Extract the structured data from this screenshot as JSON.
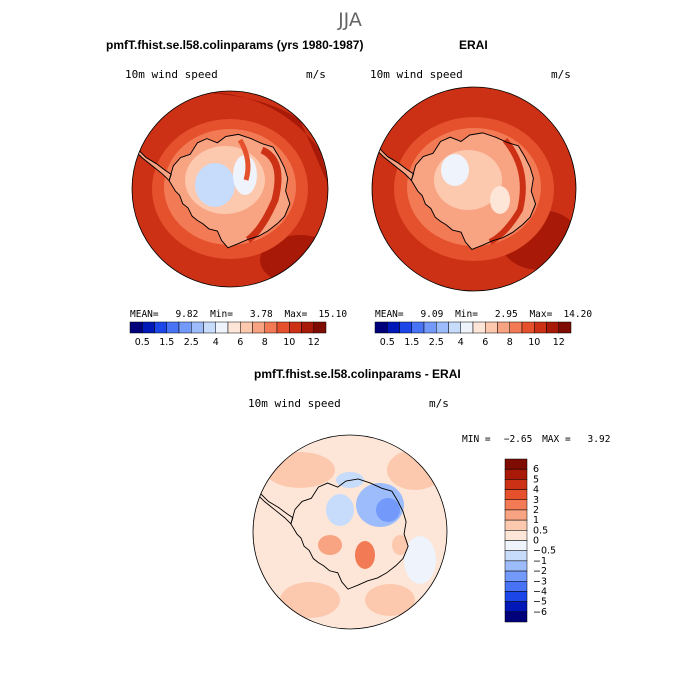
{
  "figure_title": "JJA",
  "panels": [
    {
      "id": "model",
      "title": "pmfT.fhist.se.l58.colinparams (yrs 1980-1987)",
      "variable": "10m wind speed",
      "units": "m/s",
      "stats": {
        "mean_label": "MEAN=",
        "mean": "9.82",
        "min_label": "Min=",
        "min": "3.78",
        "max_label": "Max=",
        "max": "15.10"
      }
    },
    {
      "id": "obs",
      "title": "ERAI",
      "variable": "10m wind speed",
      "units": "m/s",
      "stats": {
        "mean_label": "MEAN=",
        "mean": "9.09",
        "min_label": "Min=",
        "min": "2.95",
        "max_label": "Max=",
        "max": "14.20"
      }
    },
    {
      "id": "diff",
      "title": "pmfT.fhist.se.l58.colinparams - ERAI",
      "variable": "10m wind speed",
      "units": "m/s",
      "stats": {
        "min_label": "MIN =",
        "min": "−2.65",
        "max_label": "MAX =",
        "max": "3.92"
      }
    }
  ],
  "chart_data": [
    {
      "type": "heatmap",
      "title": "pmfT.fhist.se.l58.colinparams (yrs 1980-1987)",
      "variable": "10m wind speed",
      "units": "m/s",
      "projection": "south polar stereographic",
      "summary": {
        "mean": 9.82,
        "min": 3.78,
        "max": 15.1
      },
      "colorbar": {
        "levels": [
          0.5,
          1,
          1.5,
          2,
          2.5,
          3,
          4,
          5,
          6,
          7,
          8,
          9,
          10,
          11,
          12
        ],
        "tick_labels": [
          "0.5",
          "1.5",
          "2.5",
          "4",
          "6",
          "8",
          "10",
          "12"
        ],
        "colors": [
          "#00007a",
          "#0018b8",
          "#1c46e8",
          "#4873f5",
          "#7399fa",
          "#9cbcfb",
          "#c7dbfb",
          "#eef3fc",
          "#fde6d7",
          "#fcc8ae",
          "#f8a382",
          "#f27a55",
          "#e5502d",
          "#cc3116",
          "#a81a07",
          "#7e0c02"
        ]
      }
    },
    {
      "type": "heatmap",
      "title": "ERAI",
      "variable": "10m wind speed",
      "units": "m/s",
      "projection": "south polar stereographic",
      "summary": {
        "mean": 9.09,
        "min": 2.95,
        "max": 14.2
      },
      "colorbar": {
        "levels": [
          0.5,
          1,
          1.5,
          2,
          2.5,
          3,
          4,
          5,
          6,
          7,
          8,
          9,
          10,
          11,
          12
        ],
        "tick_labels": [
          "0.5",
          "1.5",
          "2.5",
          "4",
          "6",
          "8",
          "10",
          "12"
        ],
        "colors": [
          "#00007a",
          "#0018b8",
          "#1c46e8",
          "#4873f5",
          "#7399fa",
          "#9cbcfb",
          "#c7dbfb",
          "#eef3fc",
          "#fde6d7",
          "#fcc8ae",
          "#f8a382",
          "#f27a55",
          "#e5502d",
          "#cc3116",
          "#a81a07",
          "#7e0c02"
        ]
      }
    },
    {
      "type": "heatmap",
      "title": "pmfT.fhist.se.l58.colinparams - ERAI",
      "variable": "10m wind speed",
      "units": "m/s",
      "projection": "south polar stereographic",
      "summary": {
        "min": -2.65,
        "max": 3.92
      },
      "colorbar": {
        "orientation": "vertical",
        "levels": [
          6,
          5,
          4,
          3,
          2,
          1,
          0.5,
          0,
          -0.5,
          -1,
          -2,
          -3,
          -4,
          -5,
          -6
        ],
        "tick_labels": [
          "6",
          "5",
          "4",
          "3",
          "2",
          "1",
          "0.5",
          "0",
          "−0.5",
          "−1",
          "−2",
          "−3",
          "−4",
          "−5",
          "−6"
        ],
        "colors": [
          "#7e0c02",
          "#a81a07",
          "#cc3116",
          "#e5502d",
          "#f27a55",
          "#f8a382",
          "#fcc8ae",
          "#fde6d7",
          "#eef3fc",
          "#c7dbfb",
          "#9cbcfb",
          "#7399fa",
          "#4873f5",
          "#1c46e8",
          "#0018b8",
          "#00007a"
        ]
      }
    }
  ]
}
